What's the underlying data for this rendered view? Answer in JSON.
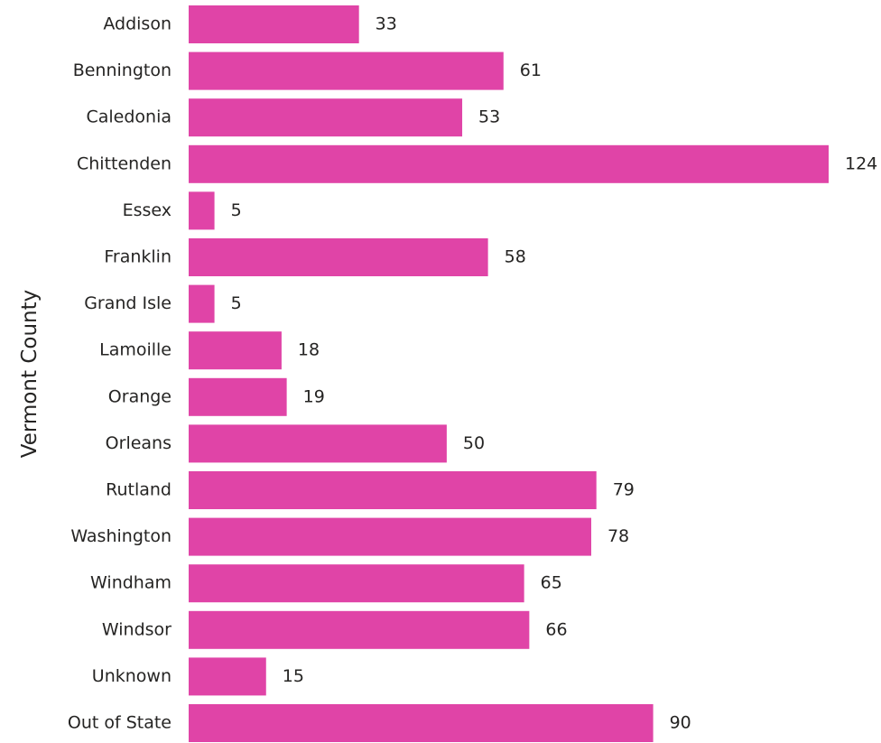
{
  "chart_data": {
    "type": "bar",
    "orientation": "horizontal",
    "ylabel": "Vermont County",
    "xlabel": "",
    "title": "",
    "categories": [
      "Addison",
      "Bennington",
      "Caledonia",
      "Chittenden",
      "Essex",
      "Franklin",
      "Grand Isle",
      "Lamoille",
      "Orange",
      "Orleans",
      "Rutland",
      "Washington",
      "Windham",
      "Windsor",
      "Unknown",
      "Out of State"
    ],
    "values": [
      33,
      61,
      53,
      124,
      5,
      58,
      5,
      18,
      19,
      50,
      79,
      78,
      65,
      66,
      15,
      90
    ],
    "xlim": [
      0,
      124
    ],
    "bar_color": "#E044A7",
    "data_labels": true,
    "grid": false,
    "legend": "none"
  }
}
